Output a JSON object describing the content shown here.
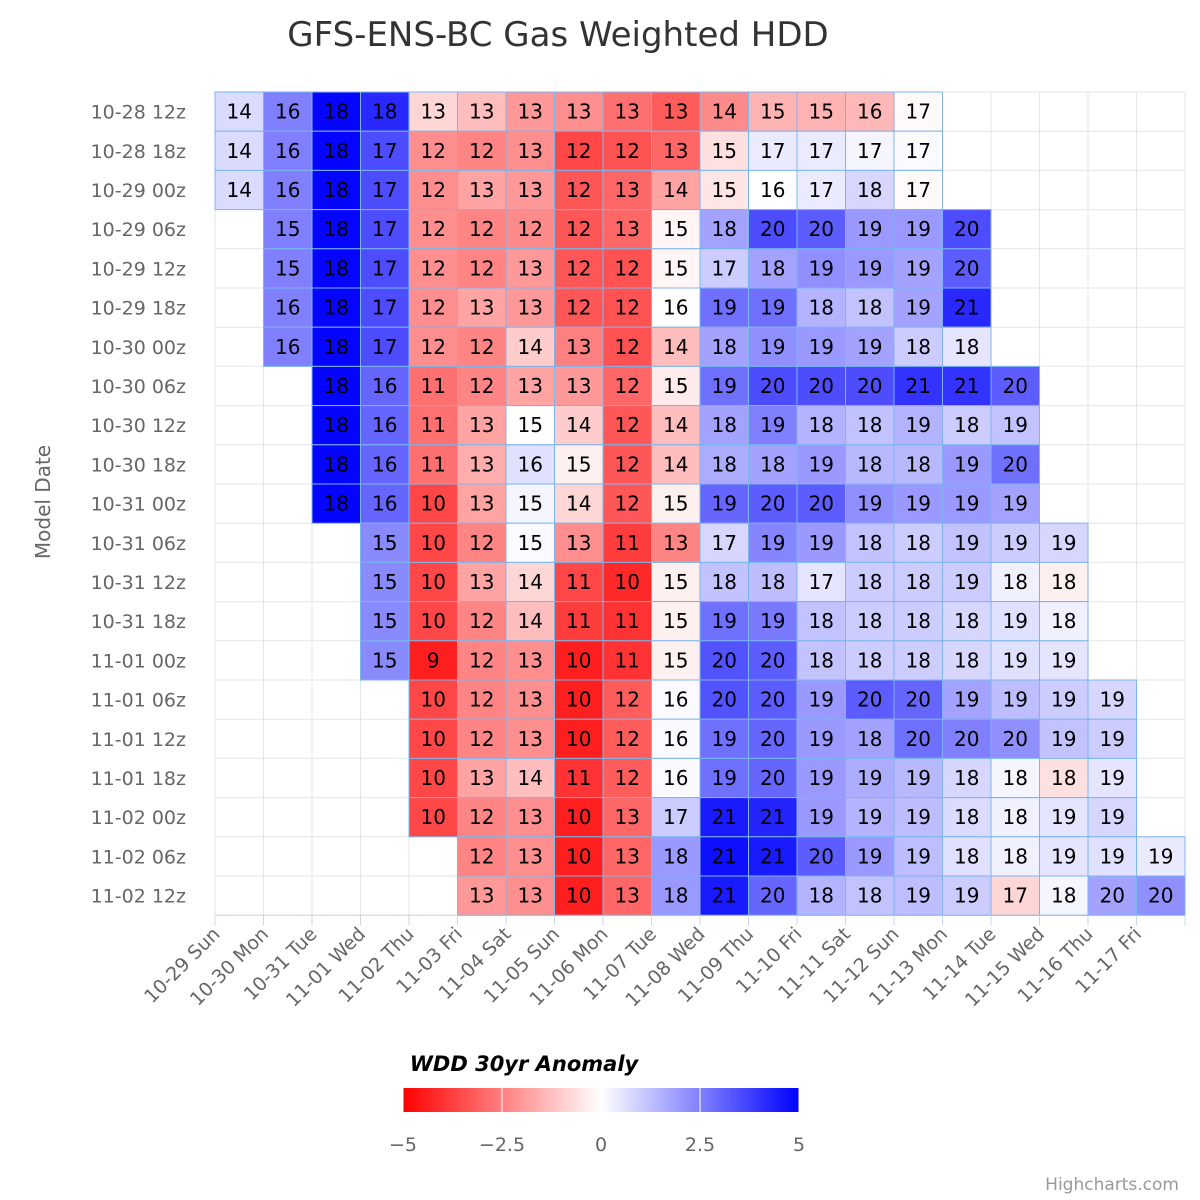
{
  "chart_data": {
    "type": "heatmap",
    "title": "GFS-ENS-BC Gas Weighted HDD",
    "ylabel": "Model Date",
    "xlabel": "",
    "x_categories": [
      "10-29 Sun",
      "10-30 Mon",
      "10-31 Tue",
      "11-01 Wed",
      "11-02 Thu",
      "11-03 Fri",
      "11-04 Sat",
      "11-05 Sun",
      "11-06 Mon",
      "11-07 Tue",
      "11-08 Wed",
      "11-09 Thu",
      "11-10 Fri",
      "11-11 Sat",
      "11-12 Sun",
      "11-13 Mon",
      "11-14 Tue",
      "11-15 Wed",
      "11-16 Thu",
      "11-17 Fri"
    ],
    "y_categories": [
      "10-28 12z",
      "10-28 18z",
      "10-29 00z",
      "10-29 06z",
      "10-29 12z",
      "10-29 18z",
      "10-30 00z",
      "10-30 06z",
      "10-30 12z",
      "10-30 18z",
      "10-31 00z",
      "10-31 06z",
      "10-31 12z",
      "10-31 18z",
      "11-01 00z",
      "11-01 06z",
      "11-01 12z",
      "11-01 18z",
      "11-02 00z",
      "11-02 06z",
      "11-02 12z"
    ],
    "rows": [
      {
        "start": 0,
        "values": [
          14,
          16,
          18,
          18,
          13,
          13,
          13,
          13,
          13,
          13,
          14,
          15,
          15,
          16,
          17
        ],
        "anomalies": [
          0.7,
          2.5,
          4.9,
          4.2,
          -0.8,
          -1.3,
          -2.0,
          -2.2,
          -2.8,
          -3.2,
          -2.3,
          -1.5,
          -1.5,
          -1.4,
          -0.1
        ]
      },
      {
        "start": 0,
        "values": [
          14,
          16,
          18,
          17,
          12,
          12,
          13,
          12,
          12,
          13,
          15,
          17,
          17,
          17,
          17
        ],
        "anomalies": [
          0.7,
          2.5,
          4.9,
          3.5,
          -2.2,
          -2.4,
          -2.2,
          -3.6,
          -3.4,
          -3.0,
          -0.6,
          0.4,
          0.4,
          0.2,
          0.1
        ]
      },
      {
        "start": 0,
        "values": [
          14,
          16,
          18,
          17,
          12,
          13,
          13,
          12,
          13,
          14,
          15,
          16,
          17,
          18,
          17
        ],
        "anomalies": [
          0.7,
          2.5,
          4.9,
          3.5,
          -2.2,
          -1.8,
          -2.0,
          -3.3,
          -3.0,
          -1.8,
          -0.5,
          0,
          0.4,
          0.8,
          -0.1
        ]
      },
      {
        "start": 1,
        "values": [
          15,
          18,
          17,
          12,
          12,
          12,
          12,
          13,
          15,
          18,
          20,
          20,
          19,
          19,
          20
        ],
        "anomalies": [
          2.5,
          4.9,
          3.5,
          -2.2,
          -2.4,
          -2.3,
          -3.3,
          -3.0,
          -0.2,
          1.8,
          3.5,
          3.2,
          2.0,
          2.0,
          3.5
        ]
      },
      {
        "start": 1,
        "values": [
          15,
          18,
          17,
          12,
          12,
          13,
          12,
          12,
          15,
          17,
          18,
          19,
          19,
          19,
          20
        ],
        "anomalies": [
          2.5,
          4.9,
          3.5,
          -2.2,
          -2.4,
          -2.0,
          -3.3,
          -3.4,
          -0.2,
          1.0,
          1.8,
          2.2,
          2.0,
          1.8,
          3.2
        ]
      },
      {
        "start": 1,
        "values": [
          16,
          18,
          17,
          12,
          13,
          13,
          12,
          12,
          16,
          19,
          19,
          18,
          18,
          19,
          21
        ],
        "anomalies": [
          2.5,
          4.9,
          3.5,
          -2.2,
          -1.8,
          -2.0,
          -3.3,
          -3.4,
          0,
          2.8,
          2.8,
          1.5,
          1.2,
          1.8,
          4.2
        ]
      },
      {
        "start": 1,
        "values": [
          16,
          18,
          17,
          12,
          12,
          14,
          13,
          12,
          14,
          18,
          19,
          19,
          19,
          18,
          18
        ],
        "anomalies": [
          2.5,
          4.9,
          3.5,
          -2.2,
          -2.4,
          -1.0,
          -2.5,
          -3.4,
          -1.3,
          1.8,
          2.2,
          2.0,
          1.8,
          1.0,
          0.5
        ]
      },
      {
        "start": 2,
        "values": [
          18,
          16,
          11,
          12,
          13,
          13,
          12,
          15,
          19,
          20,
          20,
          20,
          21,
          21,
          20
        ],
        "anomalies": [
          4.9,
          3.0,
          -2.8,
          -2.4,
          -1.8,
          -2.0,
          -3.0,
          -0.4,
          2.8,
          3.5,
          3.5,
          3.5,
          4.0,
          4.0,
          3.2
        ]
      },
      {
        "start": 2,
        "values": [
          18,
          16,
          11,
          13,
          15,
          14,
          12,
          14,
          18,
          19,
          18,
          18,
          19,
          18,
          19
        ],
        "anomalies": [
          4.9,
          3.0,
          -2.8,
          -1.8,
          0,
          -1.0,
          -3.3,
          -1.3,
          1.8,
          2.5,
          1.5,
          1.2,
          1.5,
          1.0,
          1.2
        ]
      },
      {
        "start": 2,
        "values": [
          18,
          16,
          11,
          13,
          16,
          15,
          12,
          14,
          18,
          18,
          19,
          18,
          18,
          19,
          20
        ],
        "anomalies": [
          4.9,
          3.0,
          -2.8,
          -1.6,
          0.6,
          -0.3,
          -3.3,
          -1.3,
          1.6,
          1.8,
          2.0,
          1.4,
          1.4,
          2.0,
          2.8
        ]
      },
      {
        "start": 2,
        "values": [
          18,
          16,
          10,
          13,
          15,
          14,
          12,
          15,
          19,
          20,
          20,
          19,
          19,
          19,
          19
        ],
        "anomalies": [
          4.9,
          3.0,
          -3.6,
          -1.8,
          0.2,
          -0.8,
          -3.3,
          -0.3,
          3.0,
          3.2,
          3.2,
          2.2,
          2.0,
          2.0,
          1.8
        ]
      },
      {
        "start": 3,
        "values": [
          15,
          10,
          12,
          15,
          13,
          11,
          13,
          17,
          19,
          19,
          18,
          18,
          19,
          19,
          19
        ],
        "anomalies": [
          2.3,
          -3.6,
          -2.4,
          0.1,
          -2.2,
          -3.8,
          -2.4,
          0.8,
          2.4,
          2.0,
          1.2,
          1.0,
          1.2,
          1.0,
          0.8
        ]
      },
      {
        "start": 3,
        "values": [
          15,
          10,
          13,
          14,
          11,
          10,
          15,
          18,
          18,
          17,
          18,
          18,
          19,
          18,
          18
        ],
        "anomalies": [
          2.3,
          -3.6,
          -1.8,
          -0.8,
          -3.6,
          -4.2,
          -0.3,
          1.2,
          1.3,
          0.5,
          1.0,
          1.0,
          1.0,
          0.3,
          -0.3
        ]
      },
      {
        "start": 3,
        "values": [
          15,
          10,
          12,
          14,
          11,
          11,
          15,
          19,
          19,
          18,
          18,
          18,
          18,
          19,
          18
        ],
        "anomalies": [
          2.3,
          -3.6,
          -2.4,
          -1.3,
          -3.8,
          -4.0,
          -0.3,
          2.8,
          2.6,
          1.2,
          1.0,
          1.0,
          0.8,
          0.6,
          0.3
        ]
      },
      {
        "start": 3,
        "values": [
          15,
          9,
          12,
          13,
          10,
          11,
          15,
          20,
          20,
          18,
          18,
          18,
          18,
          19,
          19
        ],
        "anomalies": [
          2.3,
          -4.4,
          -2.4,
          -2.2,
          -4.4,
          -4.0,
          -0.3,
          3.4,
          3.2,
          1.2,
          1.0,
          1.0,
          0.8,
          0.6,
          0.5
        ]
      },
      {
        "start": 4,
        "values": [
          10,
          12,
          13,
          10,
          12,
          16,
          20,
          20,
          19,
          20,
          20,
          19,
          19,
          19,
          19
        ],
        "anomalies": [
          -3.6,
          -2.4,
          -2.2,
          -4.4,
          -3.2,
          0.1,
          3.4,
          3.2,
          2.0,
          3.2,
          3.0,
          1.8,
          1.3,
          1.0,
          0.8
        ]
      },
      {
        "start": 4,
        "values": [
          10,
          12,
          13,
          10,
          12,
          16,
          19,
          20,
          19,
          18,
          20,
          20,
          20,
          19,
          19
        ],
        "anomalies": [
          -3.6,
          -2.4,
          -2.2,
          -4.4,
          -3.2,
          0.1,
          2.8,
          3.0,
          2.0,
          1.8,
          2.8,
          2.5,
          2.2,
          1.2,
          1.0
        ]
      },
      {
        "start": 4,
        "values": [
          10,
          13,
          14,
          11,
          12,
          16,
          19,
          20,
          19,
          19,
          19,
          18,
          18,
          18,
          19
        ],
        "anomalies": [
          -3.6,
          -1.8,
          -1.3,
          -4.0,
          -3.2,
          0.1,
          2.8,
          3.0,
          2.0,
          1.6,
          1.4,
          0.8,
          0.2,
          -0.6,
          0.5
        ]
      },
      {
        "start": 4,
        "values": [
          10,
          12,
          13,
          10,
          13,
          17,
          21,
          21,
          19,
          19,
          19,
          18,
          18,
          19,
          19
        ],
        "anomalies": [
          -3.6,
          -2.4,
          -2.2,
          -4.4,
          -3.0,
          1.0,
          4.5,
          4.3,
          2.0,
          1.5,
          1.3,
          0.7,
          0.3,
          0.5,
          0.8
        ]
      },
      {
        "start": 5,
        "values": [
          12,
          13,
          10,
          13,
          18,
          21,
          21,
          20,
          19,
          19,
          18,
          18,
          19,
          19,
          19
        ],
        "anomalies": [
          -2.4,
          -2.2,
          -4.4,
          -3.0,
          2.0,
          4.7,
          4.5,
          3.2,
          2.0,
          1.3,
          0.6,
          0.3,
          0.5,
          0.6,
          0.4
        ]
      },
      {
        "start": 5,
        "values": [
          13,
          13,
          10,
          13,
          18,
          21,
          20,
          18,
          18,
          19,
          19,
          17,
          18,
          20,
          20
        ],
        "anomalies": [
          -2.0,
          -2.2,
          -4.4,
          -3.0,
          2.0,
          4.5,
          3.0,
          1.5,
          1.2,
          1.3,
          1.0,
          -0.8,
          0.2,
          1.8,
          2.2
        ]
      }
    ],
    "colorAxis": {
      "title": "WDD 30yr Anomaly",
      "min": -5,
      "max": 5,
      "tick_labels": [
        "−5",
        "−2.5",
        "0",
        "2.5",
        "5"
      ],
      "tick_values": [
        -5,
        -2.5,
        0,
        2.5,
        5
      ],
      "min_color": "#ff0000",
      "mid_color": "#ffffff",
      "max_color": "#0000ff"
    },
    "grid": true,
    "border_color": "#7cb5ec",
    "credits": "Highcharts.com"
  }
}
